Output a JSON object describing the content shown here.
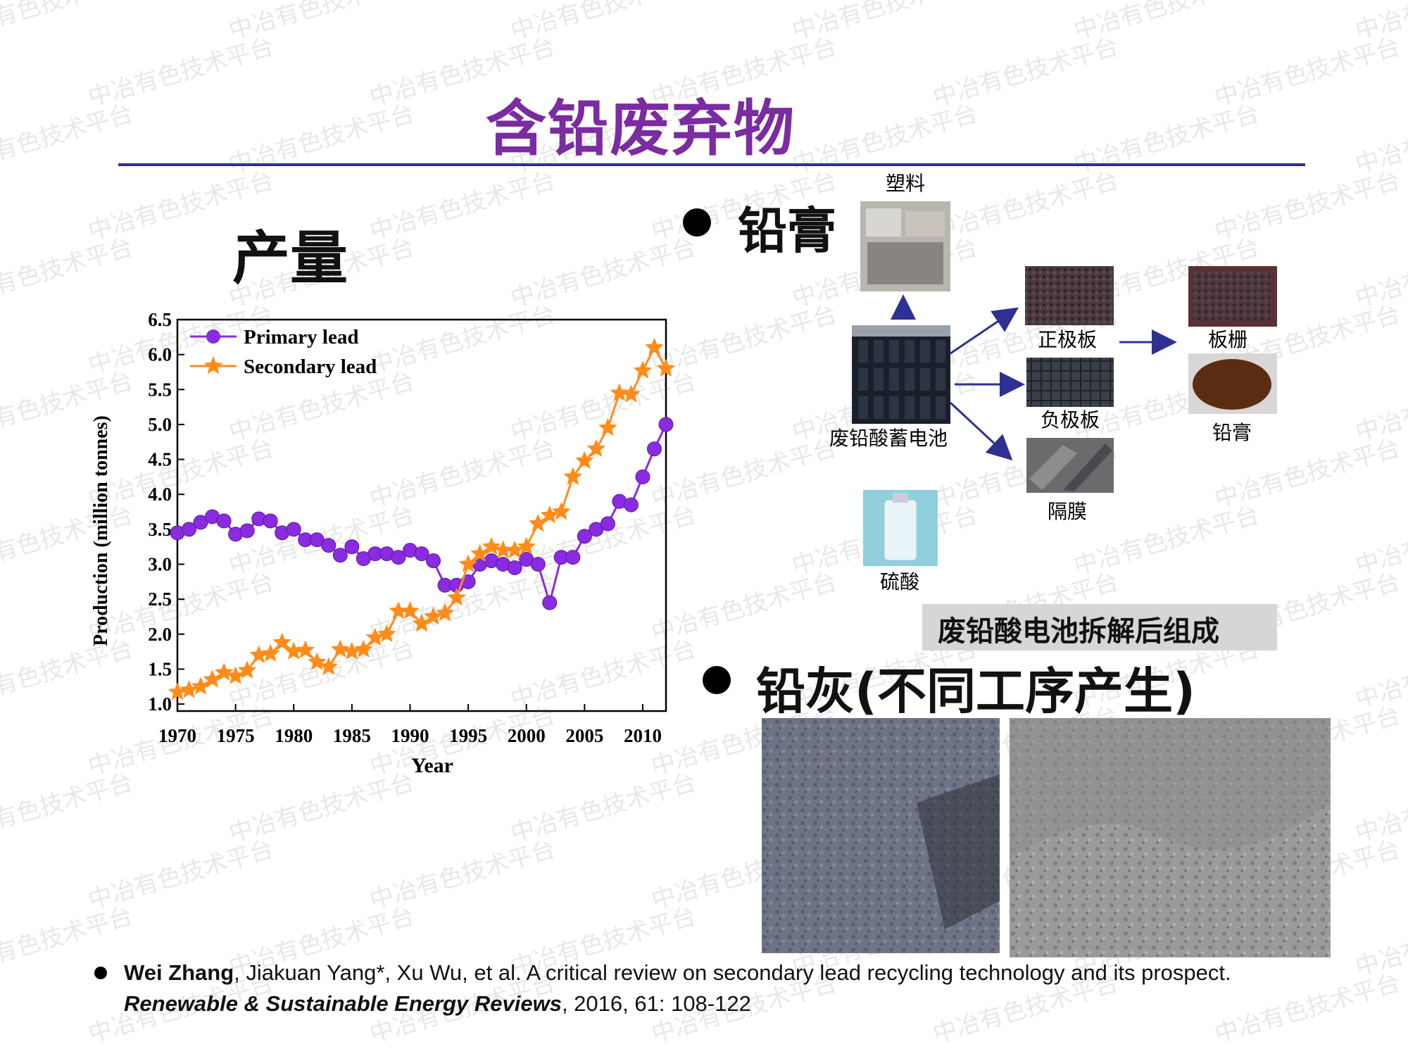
{
  "title": "含铅废弃物",
  "watermark": "中冶有色技术平台",
  "production_heading": "产量",
  "lead_paste": {
    "heading": "铅膏",
    "labels": {
      "plastic": "塑料",
      "battery": "废铅酸蓄电池",
      "positive_plate": "正极板",
      "negative_plate": "负极板",
      "separator": "隔膜",
      "sulfuric_acid": "硫酸",
      "grid": "板栅",
      "paste": "铅膏"
    },
    "caption": "废铅酸电池拆解后组成"
  },
  "lead_ash": {
    "heading": "铅灰(不同工序产生)"
  },
  "reference": {
    "author_bold": "Wei Zhang",
    "authors_rest": ", Jiakuan Yang*, Xu Wu, et al. A critical review on secondary lead recycling technology and its prospect.",
    "journal": "Renewable & Sustainable Energy Reviews",
    "details": ", 2016, 61: 108-122"
  },
  "colors": {
    "title": "#7a2ca0",
    "rule": "#2e3192",
    "primary": "#8a2be2",
    "secondary": "#ff8c1a",
    "arrow": "#2e3192"
  },
  "chart_data": {
    "type": "line",
    "xlabel": "Year",
    "ylabel": "Production (million tonnes)",
    "xlim": [
      1970,
      2012
    ],
    "ylim": [
      0.9,
      6.5
    ],
    "xticks": [
      1970,
      1975,
      1980,
      1985,
      1990,
      1995,
      2000,
      2005,
      2010
    ],
    "yticks": [
      1.0,
      1.5,
      2.0,
      2.5,
      3.0,
      3.5,
      4.0,
      4.5,
      5.0,
      5.5,
      6.0,
      6.5
    ],
    "ytick_labels": [
      "1.0",
      "1.5",
      "2.0",
      "2.5",
      "3.0",
      "3.5",
      "4.0",
      "4.5",
      "5.0",
      "5.5",
      "6.0",
      "6.5"
    ],
    "legend_position": "top-left",
    "series": [
      {
        "name": "Primary lead",
        "marker": "sphere",
        "x": [
          1970,
          1971,
          1972,
          1973,
          1974,
          1975,
          1976,
          1977,
          1978,
          1979,
          1980,
          1981,
          1982,
          1983,
          1984,
          1985,
          1986,
          1987,
          1988,
          1989,
          1990,
          1991,
          1992,
          1993,
          1994,
          1995,
          1996,
          1997,
          1998,
          1999,
          2000,
          2001,
          2002,
          2003,
          2004,
          2005,
          2006,
          2007,
          2008,
          2009,
          2010,
          2011,
          2012
        ],
        "values": [
          3.45,
          3.5,
          3.6,
          3.68,
          3.62,
          3.43,
          3.48,
          3.65,
          3.62,
          3.45,
          3.5,
          3.35,
          3.35,
          3.27,
          3.13,
          3.25,
          3.08,
          3.15,
          3.15,
          3.1,
          3.2,
          3.15,
          3.05,
          2.7,
          2.7,
          2.75,
          3.0,
          3.05,
          3.0,
          2.95,
          3.07,
          3.0,
          2.45,
          3.1,
          3.1,
          3.4,
          3.5,
          3.58,
          3.9,
          3.85,
          4.25,
          4.65,
          5.0
        ]
      },
      {
        "name": "Secondary lead",
        "marker": "star",
        "x": [
          1970,
          1971,
          1972,
          1973,
          1974,
          1975,
          1976,
          1977,
          1978,
          1979,
          1980,
          1981,
          1982,
          1983,
          1984,
          1985,
          1986,
          1987,
          1988,
          1989,
          1990,
          1991,
          1992,
          1993,
          1994,
          1995,
          1996,
          1997,
          1998,
          1999,
          2000,
          2001,
          2002,
          2003,
          2004,
          2005,
          2006,
          2007,
          2008,
          2009,
          2010,
          2011,
          2012
        ],
        "values": [
          1.17,
          1.2,
          1.25,
          1.35,
          1.45,
          1.4,
          1.48,
          1.7,
          1.72,
          1.88,
          1.75,
          1.77,
          1.6,
          1.53,
          1.78,
          1.75,
          1.78,
          1.95,
          2.0,
          2.33,
          2.33,
          2.15,
          2.25,
          2.3,
          2.52,
          3.0,
          3.15,
          3.25,
          3.2,
          3.2,
          3.25,
          3.58,
          3.7,
          3.75,
          4.25,
          4.48,
          4.65,
          4.95,
          5.45,
          5.43,
          5.77,
          6.1,
          5.8
        ]
      }
    ]
  }
}
